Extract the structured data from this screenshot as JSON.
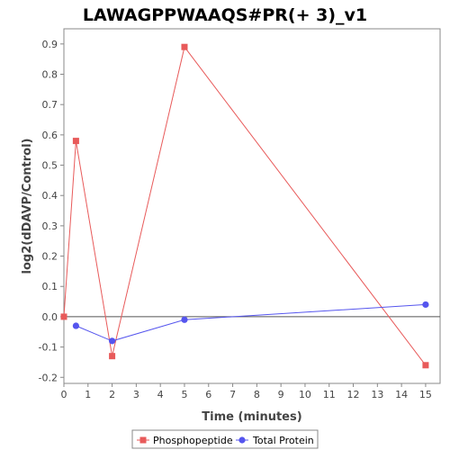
{
  "chart_data": {
    "type": "line",
    "title": "LAWAGPPWAAQS#PR(+ 3)_v1",
    "xlabel": "Time (minutes)",
    "ylabel": "log2(dDAVP/Control)",
    "xlim": [
      0,
      15.6
    ],
    "ylim": [
      -0.22,
      0.95
    ],
    "xticks": [
      0,
      1,
      2,
      3,
      4,
      5,
      6,
      7,
      8,
      9,
      10,
      11,
      12,
      13,
      14,
      15
    ],
    "yticks": [
      -0.2,
      -0.1,
      0.0,
      0.1,
      0.2,
      0.3,
      0.4,
      0.5,
      0.6,
      0.7,
      0.8,
      0.9
    ],
    "ytick_labels": [
      "-0.2",
      "-0.1",
      "0.0",
      "0.1",
      "0.2",
      "0.3",
      "0.4",
      "0.5",
      "0.6",
      "0.7",
      "0.8",
      "0.9"
    ],
    "zero_line": true,
    "grid": false,
    "legend_position": "bottom",
    "series": [
      {
        "name": "Phosphopeptide",
        "color": "#e85a5a",
        "marker": "square",
        "x": [
          0,
          0.5,
          2,
          5,
          15
        ],
        "y": [
          0.0,
          0.58,
          -0.13,
          0.89,
          -0.16
        ]
      },
      {
        "name": "Total Protein",
        "color": "#5555ee",
        "marker": "circle",
        "x": [
          0.5,
          2,
          5,
          15
        ],
        "y": [
          -0.03,
          -0.08,
          -0.01,
          0.04
        ]
      }
    ]
  }
}
